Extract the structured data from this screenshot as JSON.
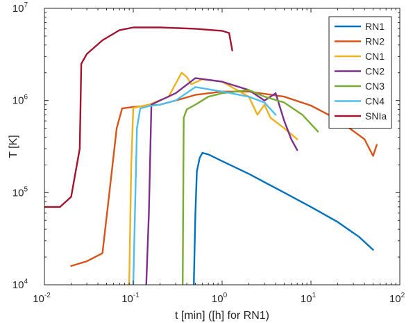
{
  "chart_data": {
    "type": "line",
    "xlabel": "t [min] ([h] for RN1)",
    "ylabel": "T [K]",
    "xscale": "log",
    "yscale": "log",
    "xlim": [
      0.01,
      100
    ],
    "ylim": [
      10000,
      10000000
    ],
    "x_ticks": [
      {
        "base": "10",
        "exp": "-2",
        "value": 0.01
      },
      {
        "base": "10",
        "exp": "-1",
        "value": 0.1
      },
      {
        "base": "10",
        "exp": "0",
        "value": 1
      },
      {
        "base": "10",
        "exp": "1",
        "value": 10
      },
      {
        "base": "10",
        "exp": "2",
        "value": 100
      }
    ],
    "y_ticks": [
      {
        "base": "10",
        "exp": "4",
        "value": 10000
      },
      {
        "base": "10",
        "exp": "5",
        "value": 100000
      },
      {
        "base": "10",
        "exp": "6",
        "value": 1000000
      },
      {
        "base": "10",
        "exp": "7",
        "value": 10000000
      }
    ],
    "grid": false,
    "legend_position": "top-right",
    "series": [
      {
        "name": "RN1",
        "color": "#0072BD",
        "x": [
          0.48,
          0.5,
          0.52,
          0.56,
          0.6,
          0.7,
          1.0,
          2.0,
          5.0,
          10,
          20,
          35,
          50
        ],
        "y": [
          10000,
          60000,
          170000,
          240000,
          270000,
          260000,
          220000,
          160000,
          100000,
          70000,
          48000,
          33000,
          24000
        ]
      },
      {
        "name": "RN2",
        "color": "#D95319",
        "x": [
          0.02,
          0.03,
          0.045,
          0.055,
          0.065,
          0.075,
          0.1,
          0.2,
          0.3,
          0.5,
          1.0,
          2.0,
          5.0,
          10,
          20,
          40,
          50,
          55
        ],
        "y": [
          16000,
          18000,
          22000,
          120000,
          500000,
          820000,
          850000,
          900000,
          1000000,
          1150000,
          1250000,
          1250000,
          1100000,
          880000,
          620000,
          380000,
          250000,
          330000
        ]
      },
      {
        "name": "CN1",
        "color": "#EDB120",
        "x": [
          0.09,
          0.095,
          0.1,
          0.15,
          0.25,
          0.35,
          0.4,
          0.45,
          0.6,
          1.0,
          2.0,
          2.5,
          3.0,
          3.5,
          5.0,
          7.0
        ],
        "y": [
          10000,
          200000,
          830000,
          900000,
          1100000,
          2000000,
          1800000,
          1500000,
          1700000,
          1600000,
          1100000,
          700000,
          900000,
          650000,
          500000,
          380000
        ]
      },
      {
        "name": "CN2",
        "color": "#7E2F8E",
        "x": [
          0.14,
          0.15,
          0.16,
          0.2,
          0.3,
          0.5,
          1.0,
          2.0,
          3.0,
          4.0,
          5.0,
          6.0,
          7.0
        ],
        "y": [
          10000,
          60000,
          900000,
          1000000,
          1200000,
          1750000,
          1600000,
          1300000,
          1000000,
          1200000,
          600000,
          380000,
          290000
        ]
      },
      {
        "name": "CN3",
        "color": "#77AC30",
        "x": [
          0.36,
          0.37,
          0.4,
          0.5,
          0.7,
          1.0,
          2.0,
          3.0,
          5.0,
          8.0,
          12
        ],
        "y": [
          10000,
          650000,
          800000,
          900000,
          1100000,
          1200000,
          1300000,
          1100000,
          950000,
          700000,
          460000
        ]
      },
      {
        "name": "CN4",
        "color": "#4DBEEE",
        "x": [
          0.1,
          0.11,
          0.12,
          0.15,
          0.2,
          0.3,
          0.5,
          1.0,
          2.0,
          3.0,
          4.0
        ],
        "y": [
          10000,
          500000,
          820000,
          870000,
          900000,
          1000000,
          1400000,
          1250000,
          1100000,
          950000,
          700000
        ]
      },
      {
        "name": "SNIa",
        "color": "#A2142F",
        "x": [
          0.01,
          0.015,
          0.02,
          0.025,
          0.026,
          0.03,
          0.045,
          0.07,
          0.1,
          0.2,
          0.5,
          1.0,
          1.2,
          1.3
        ],
        "y": [
          70000,
          70000,
          90000,
          300000,
          2500000,
          3200000,
          4500000,
          5800000,
          6200000,
          6200000,
          6000000,
          5700000,
          5400000,
          3500000
        ]
      }
    ]
  }
}
